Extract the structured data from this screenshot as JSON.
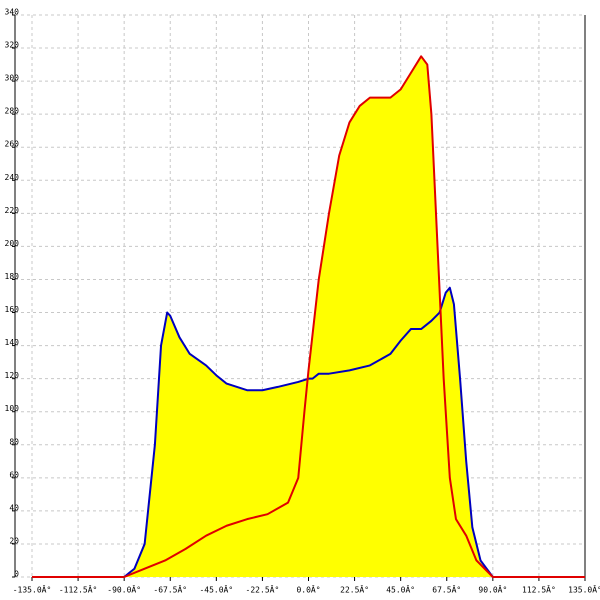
{
  "chart_data": {
    "type": "area",
    "xlim": [
      -135,
      135
    ],
    "xticks": [
      {
        "value": -135,
        "label": "-135.0Â°"
      },
      {
        "value": -112.5,
        "label": "-112.5Â°"
      },
      {
        "value": -90,
        "label": "-90.0Â°"
      },
      {
        "value": -67.5,
        "label": "-67.5Â°"
      },
      {
        "value": -45,
        "label": "-45.0Â°"
      },
      {
        "value": -22.5,
        "label": "-22.5Â°"
      },
      {
        "value": 0,
        "label": "0.0Â°"
      },
      {
        "value": 22.5,
        "label": "22.5Â°"
      },
      {
        "value": 45,
        "label": "45.0Â°"
      },
      {
        "value": 67.5,
        "label": "67.5Â°"
      },
      {
        "value": 90,
        "label": "90.0Â°"
      },
      {
        "value": 112.5,
        "label": "112.5Â°"
      },
      {
        "value": 135,
        "label": "135.0Â°"
      }
    ],
    "ylim": [
      0,
      340
    ],
    "yticks": [
      0,
      20,
      40,
      60,
      80,
      100,
      120,
      140,
      160,
      180,
      200,
      220,
      240,
      260,
      280,
      300,
      320,
      340
    ],
    "grid": true,
    "fill_color": "#ffff00",
    "series": [
      {
        "color": "#0000c0",
        "x": [
          -90,
          -85,
          -80,
          -75,
          -72,
          -69,
          -67.5,
          -63,
          -58,
          -50,
          -45,
          -40,
          -30,
          -22.5,
          -15,
          -5,
          0,
          2,
          5,
          10,
          20,
          30,
          40,
          45,
          50,
          55,
          60,
          64,
          67,
          69,
          71,
          74,
          77,
          80,
          84,
          90
        ],
        "values": [
          0,
          5,
          20,
          80,
          140,
          160,
          158,
          145,
          135,
          128,
          122,
          117,
          113,
          113,
          115,
          118,
          120,
          120,
          123,
          123,
          125,
          128,
          135,
          143,
          150,
          150,
          155,
          160,
          172,
          175,
          165,
          120,
          70,
          30,
          10,
          0
        ]
      },
      {
        "color": "#e00000",
        "x": [
          -135,
          -90,
          -80,
          -70,
          -60,
          -50,
          -40,
          -30,
          -20,
          -10,
          -5,
          -2,
          0,
          5,
          10,
          15,
          20,
          25,
          30,
          40,
          45,
          50,
          55,
          58,
          60,
          63,
          66,
          69,
          72,
          77,
          82,
          90,
          135
        ],
        "values": [
          0,
          0,
          5,
          10,
          17,
          25,
          31,
          35,
          38,
          45,
          60,
          100,
          125,
          180,
          220,
          255,
          275,
          285,
          290,
          290,
          295,
          305,
          315,
          310,
          280,
          200,
          120,
          60,
          35,
          25,
          10,
          0,
          0
        ]
      }
    ]
  }
}
